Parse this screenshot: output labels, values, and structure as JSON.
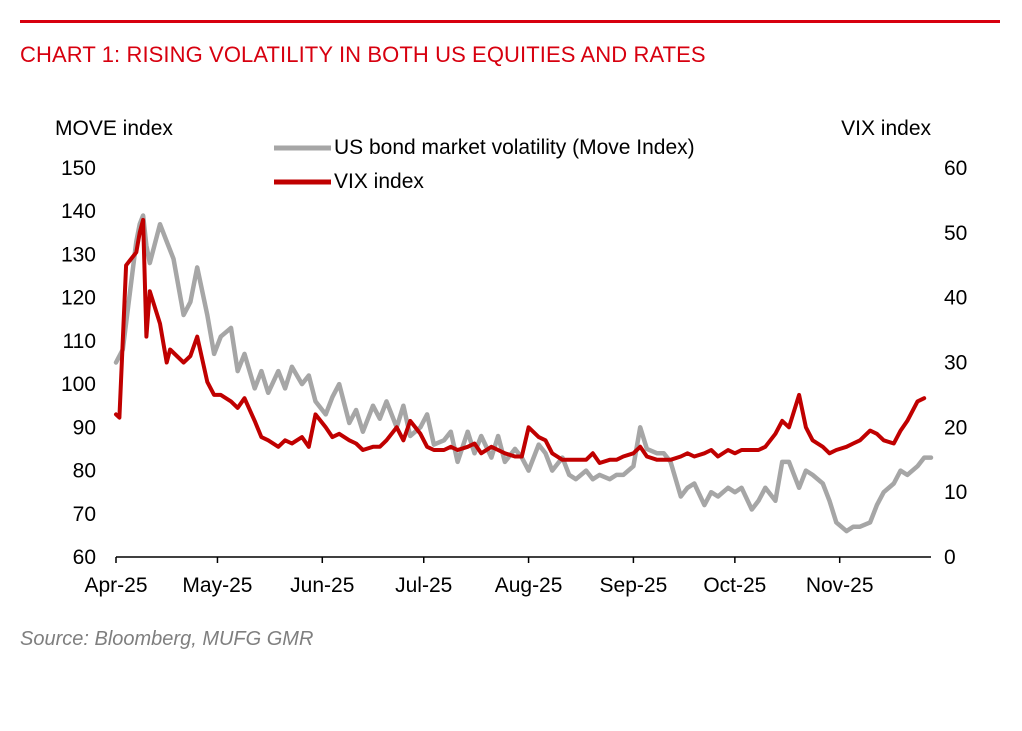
{
  "title": "CHART 1: RISING VOLATILITY IN BOTH US EQUITIES AND RATES",
  "source": "Source: Bloomberg, MUFG GMR",
  "colors": {
    "accent": "#d7000f",
    "move": "#a6a6a6",
    "vix": "#c00000"
  },
  "chart_data": {
    "type": "line",
    "ylabel_left": "MOVE index",
    "ylabel_right": "VIX index",
    "left_ticks": [
      "150",
      "140",
      "130",
      "120",
      "110",
      "100",
      "90",
      "80",
      "70",
      "60"
    ],
    "right_ticks": [
      "60",
      "50",
      "40",
      "30",
      "20",
      "10",
      "0"
    ],
    "ylim_left": [
      60,
      150
    ],
    "ylim_right": [
      0,
      60
    ],
    "x_ticks": [
      "Apr-25",
      "May-25",
      "Jun-25",
      "Jul-25",
      "Aug-25",
      "Sep-25",
      "Oct-25",
      "Nov-25"
    ],
    "legend_position": "top-center",
    "series": [
      {
        "name": "US bond market volatility (Move Index)",
        "axis": "left",
        "points": [
          [
            "2025-04-01",
            105
          ],
          [
            "2025-04-03",
            108
          ],
          [
            "2025-04-07",
            133
          ],
          [
            "2025-04-08",
            137
          ],
          [
            "2025-04-09",
            139
          ],
          [
            "2025-04-10",
            132
          ],
          [
            "2025-04-11",
            128
          ],
          [
            "2025-04-14",
            137
          ],
          [
            "2025-04-16",
            133
          ],
          [
            "2025-04-18",
            129
          ],
          [
            "2025-04-21",
            116
          ],
          [
            "2025-04-23",
            119
          ],
          [
            "2025-04-25",
            127
          ],
          [
            "2025-04-28",
            116
          ],
          [
            "2025-04-30",
            107
          ],
          [
            "2025-05-02",
            111
          ],
          [
            "2025-05-05",
            113
          ],
          [
            "2025-05-07",
            103
          ],
          [
            "2025-05-09",
            107
          ],
          [
            "2025-05-12",
            99
          ],
          [
            "2025-05-14",
            103
          ],
          [
            "2025-05-16",
            98
          ],
          [
            "2025-05-19",
            103
          ],
          [
            "2025-05-21",
            99
          ],
          [
            "2025-05-23",
            104
          ],
          [
            "2025-05-26",
            100
          ],
          [
            "2025-05-28",
            102
          ],
          [
            "2025-05-30",
            96
          ],
          [
            "2025-06-02",
            93
          ],
          [
            "2025-06-04",
            97
          ],
          [
            "2025-06-06",
            100
          ],
          [
            "2025-06-09",
            91
          ],
          [
            "2025-06-11",
            94
          ],
          [
            "2025-06-13",
            89
          ],
          [
            "2025-06-16",
            95
          ],
          [
            "2025-06-18",
            92
          ],
          [
            "2025-06-20",
            96
          ],
          [
            "2025-06-23",
            90
          ],
          [
            "2025-06-25",
            95
          ],
          [
            "2025-06-27",
            88
          ],
          [
            "2025-06-30",
            90
          ],
          [
            "2025-07-02",
            93
          ],
          [
            "2025-07-04",
            86
          ],
          [
            "2025-07-07",
            87
          ],
          [
            "2025-07-09",
            89
          ],
          [
            "2025-07-11",
            82
          ],
          [
            "2025-07-14",
            89
          ],
          [
            "2025-07-16",
            84
          ],
          [
            "2025-07-18",
            88
          ],
          [
            "2025-07-21",
            83
          ],
          [
            "2025-07-23",
            88
          ],
          [
            "2025-07-25",
            82
          ],
          [
            "2025-07-28",
            85
          ],
          [
            "2025-07-30",
            83
          ],
          [
            "2025-08-01",
            80
          ],
          [
            "2025-08-04",
            86
          ],
          [
            "2025-08-06",
            84
          ],
          [
            "2025-08-08",
            80
          ],
          [
            "2025-08-11",
            83
          ],
          [
            "2025-08-13",
            79
          ],
          [
            "2025-08-15",
            78
          ],
          [
            "2025-08-18",
            80
          ],
          [
            "2025-08-20",
            78
          ],
          [
            "2025-08-22",
            79
          ],
          [
            "2025-08-25",
            78
          ],
          [
            "2025-08-27",
            79
          ],
          [
            "2025-08-29",
            79
          ],
          [
            "2025-09-01",
            81
          ],
          [
            "2025-09-03",
            90
          ],
          [
            "2025-09-05",
            85
          ],
          [
            "2025-09-08",
            84
          ],
          [
            "2025-09-10",
            84
          ],
          [
            "2025-09-12",
            82
          ],
          [
            "2025-09-15",
            74
          ],
          [
            "2025-09-17",
            76
          ],
          [
            "2025-09-19",
            77
          ],
          [
            "2025-09-22",
            72
          ],
          [
            "2025-09-24",
            75
          ],
          [
            "2025-09-26",
            74
          ],
          [
            "2025-09-29",
            76
          ],
          [
            "2025-10-01",
            75
          ],
          [
            "2025-10-03",
            76
          ],
          [
            "2025-10-06",
            71
          ],
          [
            "2025-10-08",
            73
          ],
          [
            "2025-10-10",
            76
          ],
          [
            "2025-10-13",
            73
          ],
          [
            "2025-10-15",
            82
          ],
          [
            "2025-10-17",
            82
          ],
          [
            "2025-10-20",
            76
          ],
          [
            "2025-10-22",
            80
          ],
          [
            "2025-10-24",
            79
          ],
          [
            "2025-10-27",
            77
          ],
          [
            "2025-10-29",
            73
          ],
          [
            "2025-10-31",
            68
          ],
          [
            "2025-11-03",
            66
          ],
          [
            "2025-11-05",
            67
          ],
          [
            "2025-11-07",
            67
          ],
          [
            "2025-11-10",
            68
          ],
          [
            "2025-11-12",
            72
          ],
          [
            "2025-11-14",
            75
          ],
          [
            "2025-11-17",
            77
          ],
          [
            "2025-11-19",
            80
          ],
          [
            "2025-11-21",
            79
          ],
          [
            "2025-11-24",
            81
          ],
          [
            "2025-11-26",
            83
          ],
          [
            "2025-11-28",
            83
          ]
        ]
      },
      {
        "name": "VIX index",
        "axis": "right",
        "points": [
          [
            "2025-04-01",
            22
          ],
          [
            "2025-04-02",
            21.5
          ],
          [
            "2025-04-04",
            45
          ],
          [
            "2025-04-07",
            47
          ],
          [
            "2025-04-08",
            50
          ],
          [
            "2025-04-09",
            52
          ],
          [
            "2025-04-10",
            34
          ],
          [
            "2025-04-11",
            41
          ],
          [
            "2025-04-14",
            36
          ],
          [
            "2025-04-16",
            30
          ],
          [
            "2025-04-17",
            32
          ],
          [
            "2025-04-21",
            30
          ],
          [
            "2025-04-23",
            31
          ],
          [
            "2025-04-25",
            34
          ],
          [
            "2025-04-28",
            27
          ],
          [
            "2025-04-30",
            25
          ],
          [
            "2025-05-02",
            25
          ],
          [
            "2025-05-05",
            24
          ],
          [
            "2025-05-07",
            23
          ],
          [
            "2025-05-09",
            24.5
          ],
          [
            "2025-05-12",
            21
          ],
          [
            "2025-05-14",
            18.5
          ],
          [
            "2025-05-16",
            18
          ],
          [
            "2025-05-19",
            17
          ],
          [
            "2025-05-21",
            18
          ],
          [
            "2025-05-23",
            17.5
          ],
          [
            "2025-05-26",
            18.5
          ],
          [
            "2025-05-28",
            17
          ],
          [
            "2025-05-30",
            22
          ],
          [
            "2025-06-02",
            20
          ],
          [
            "2025-06-04",
            18.5
          ],
          [
            "2025-06-06",
            19
          ],
          [
            "2025-06-09",
            18
          ],
          [
            "2025-06-11",
            17.5
          ],
          [
            "2025-06-13",
            16.5
          ],
          [
            "2025-06-16",
            17
          ],
          [
            "2025-06-18",
            17
          ],
          [
            "2025-06-20",
            18
          ],
          [
            "2025-06-23",
            20
          ],
          [
            "2025-06-25",
            18
          ],
          [
            "2025-06-27",
            21
          ],
          [
            "2025-06-30",
            19
          ],
          [
            "2025-07-02",
            17
          ],
          [
            "2025-07-04",
            16.5
          ],
          [
            "2025-07-07",
            16.5
          ],
          [
            "2025-07-09",
            17
          ],
          [
            "2025-07-11",
            16.5
          ],
          [
            "2025-07-14",
            17
          ],
          [
            "2025-07-16",
            17.5
          ],
          [
            "2025-07-18",
            16
          ],
          [
            "2025-07-21",
            17
          ],
          [
            "2025-07-23",
            16.5
          ],
          [
            "2025-07-25",
            16
          ],
          [
            "2025-07-28",
            15.5
          ],
          [
            "2025-07-30",
            15.5
          ],
          [
            "2025-08-01",
            20
          ],
          [
            "2025-08-04",
            18.5
          ],
          [
            "2025-08-06",
            18
          ],
          [
            "2025-08-08",
            16
          ],
          [
            "2025-08-11",
            15
          ],
          [
            "2025-08-13",
            15
          ],
          [
            "2025-08-15",
            15
          ],
          [
            "2025-08-18",
            15
          ],
          [
            "2025-08-20",
            16
          ],
          [
            "2025-08-22",
            14.5
          ],
          [
            "2025-08-25",
            15
          ],
          [
            "2025-08-27",
            15
          ],
          [
            "2025-08-29",
            15.5
          ],
          [
            "2025-09-01",
            16
          ],
          [
            "2025-09-03",
            17
          ],
          [
            "2025-09-05",
            15.5
          ],
          [
            "2025-09-08",
            15
          ],
          [
            "2025-09-10",
            15
          ],
          [
            "2025-09-12",
            15
          ],
          [
            "2025-09-15",
            15.5
          ],
          [
            "2025-09-17",
            16
          ],
          [
            "2025-09-19",
            15.5
          ],
          [
            "2025-09-22",
            16
          ],
          [
            "2025-09-24",
            16.5
          ],
          [
            "2025-09-26",
            15.5
          ],
          [
            "2025-09-29",
            16.5
          ],
          [
            "2025-10-01",
            16
          ],
          [
            "2025-10-03",
            16.5
          ],
          [
            "2025-10-06",
            16.5
          ],
          [
            "2025-10-08",
            16.5
          ],
          [
            "2025-10-10",
            17
          ],
          [
            "2025-10-13",
            19
          ],
          [
            "2025-10-15",
            21
          ],
          [
            "2025-10-17",
            20
          ],
          [
            "2025-10-20",
            25
          ],
          [
            "2025-10-22",
            20
          ],
          [
            "2025-10-24",
            18
          ],
          [
            "2025-10-27",
            17
          ],
          [
            "2025-10-29",
            16
          ],
          [
            "2025-10-31",
            16.5
          ],
          [
            "2025-11-03",
            17
          ],
          [
            "2025-11-05",
            17.5
          ],
          [
            "2025-11-07",
            18
          ],
          [
            "2025-11-10",
            19.5
          ],
          [
            "2025-11-12",
            19
          ],
          [
            "2025-11-14",
            18
          ],
          [
            "2025-11-17",
            17.5
          ],
          [
            "2025-11-19",
            19.5
          ],
          [
            "2025-11-21",
            21
          ],
          [
            "2025-11-24",
            24
          ],
          [
            "2025-11-26",
            24.5
          ]
        ]
      }
    ]
  }
}
